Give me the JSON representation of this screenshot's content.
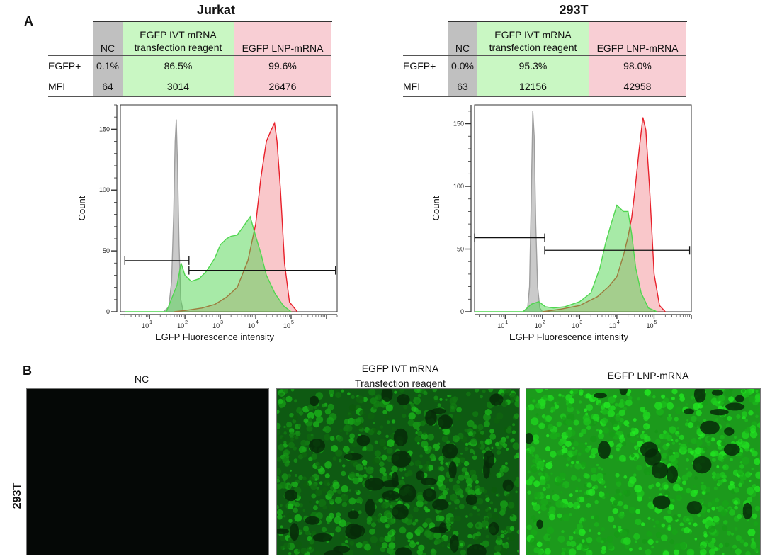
{
  "panel_a": {
    "letter": "A",
    "shared": {
      "row_labels": [
        "EGFP+",
        "MFI"
      ],
      "columns": [
        "NC",
        "EGFP IVT mRNA\ntransfection reagent",
        "EGFP LNP-mRNA"
      ],
      "column_line1": [
        "NC",
        "EGFP IVT mRNA",
        "EGFP LNP-mRNA"
      ],
      "column_line2": [
        "",
        "transfection reagent",
        ""
      ],
      "colors": {
        "nc": "#9e9e9e",
        "ivt": "#4fd64f",
        "lnp": "#e8202a",
        "grey_bg": "#c0c0c0",
        "green_bg": "#c9f7c3",
        "pink_bg": "#f8ced4"
      }
    },
    "jurkat": {
      "title": "Jurkat",
      "egfp_pos": [
        "0.1%",
        "86.5%",
        "99.6%"
      ],
      "mfi": [
        "64",
        "3014",
        "26476"
      ]
    },
    "t293": {
      "title": "293T",
      "egfp_pos": [
        "0.0%",
        "95.3%",
        "98.0%"
      ],
      "mfi": [
        "63",
        "12156",
        "42958"
      ]
    }
  },
  "chart_data": [
    {
      "type": "area",
      "title": "Jurkat",
      "xlabel": "EGFP Fluorescence intensity",
      "ylabel": "Count",
      "x_scale": "log10",
      "xlim": [
        1.5,
        2000000
      ],
      "ylim": [
        0,
        170
      ],
      "yticks": [
        0,
        50,
        100,
        150
      ],
      "xtick_labels": [
        "10",
        "10",
        "10",
        "10",
        "10"
      ],
      "xtick_exponents": [
        "1",
        "2",
        "3",
        "4",
        "5"
      ],
      "gates": [
        {
          "label": "negative",
          "from": 2,
          "to": 130,
          "y": 42
        },
        {
          "label": "positive",
          "from": 130,
          "to": 1800000,
          "y": 34
        }
      ],
      "series": [
        {
          "name": "NC",
          "color": "#9e9e9e",
          "x": [
            25,
            35,
            42,
            48,
            53,
            57,
            62,
            68,
            76,
            90
          ],
          "y": [
            0,
            4,
            25,
            80,
            140,
            158,
            120,
            55,
            10,
            0
          ]
        },
        {
          "name": "EGFP IVT mRNA transfection reagent",
          "color": "#4fd64f",
          "x": [
            2,
            30,
            60,
            78,
            100,
            150,
            250,
            400,
            700,
            1000,
            1500,
            2000,
            3000,
            5000,
            7000,
            10000,
            14000,
            20000,
            35000,
            60000,
            100000
          ],
          "y": [
            0,
            0,
            22,
            40,
            30,
            25,
            27,
            33,
            44,
            55,
            60,
            62,
            63,
            72,
            78,
            62,
            48,
            30,
            15,
            5,
            0
          ]
        },
        {
          "name": "EGFP LNP-mRNA",
          "color": "#e8202a",
          "x": [
            50,
            100,
            300,
            700,
            1500,
            3000,
            6000,
            10000,
            14000,
            20000,
            28000,
            34000,
            40000,
            50000,
            65000,
            90000,
            150000
          ],
          "y": [
            0,
            1,
            3,
            6,
            12,
            20,
            42,
            72,
            110,
            140,
            150,
            155,
            140,
            100,
            40,
            8,
            0
          ]
        }
      ]
    },
    {
      "type": "area",
      "title": "293T",
      "xlabel": "EGFP Fluorescence intensity",
      "ylabel": "Count",
      "x_scale": "log10",
      "xlim": [
        1.5,
        1000000
      ],
      "ylim": [
        0,
        165
      ],
      "yticks": [
        0,
        50,
        100,
        150
      ],
      "xtick_labels": [
        "10",
        "10",
        "10",
        "10",
        "10"
      ],
      "xtick_exponents": [
        "1",
        "2",
        "3",
        "4",
        "5"
      ],
      "gates": [
        {
          "label": "negative",
          "from": 1.5,
          "to": 115,
          "y": 59
        },
        {
          "label": "positive",
          "from": 115,
          "to": 900000,
          "y": 49
        }
      ],
      "series": [
        {
          "name": "NC",
          "color": "#9e9e9e",
          "x": [
            30,
            40,
            45,
            50,
            55,
            60,
            66,
            74,
            85,
            100
          ],
          "y": [
            0,
            3,
            20,
            90,
            160,
            140,
            70,
            20,
            3,
            0
          ]
        },
        {
          "name": "EGFP IVT mRNA transfection reagent",
          "color": "#4fd64f",
          "x": [
            1.5,
            30,
            50,
            80,
            120,
            200,
            400,
            1000,
            2000,
            3500,
            5000,
            7000,
            10000,
            15000,
            20000,
            25000,
            32000,
            45000,
            70000,
            120000
          ],
          "y": [
            0,
            0,
            6,
            8,
            4,
            3,
            4,
            8,
            15,
            35,
            55,
            70,
            85,
            80,
            80,
            62,
            35,
            15,
            3,
            0
          ]
        },
        {
          "name": "EGFP LNP-mRNA",
          "color": "#e8202a",
          "x": [
            100,
            300,
            1000,
            3000,
            6000,
            10000,
            15000,
            20000,
            25000,
            30000,
            40000,
            50000,
            60000,
            75000,
            100000,
            140000,
            200000
          ],
          "y": [
            0,
            2,
            5,
            12,
            20,
            28,
            45,
            60,
            75,
            95,
            130,
            155,
            145,
            100,
            30,
            5,
            0
          ]
        }
      ]
    }
  ],
  "panel_b": {
    "letter": "B",
    "row_label": "293T",
    "titles": [
      "NC",
      "EGFP IVT mRNA",
      "Transfection reagent",
      "EGFP LNP-mRNA"
    ],
    "image_alts": [
      "NC micrograph",
      "EGFP IVT mRNA micrograph",
      "EGFP LNP-mRNA micrograph"
    ]
  }
}
